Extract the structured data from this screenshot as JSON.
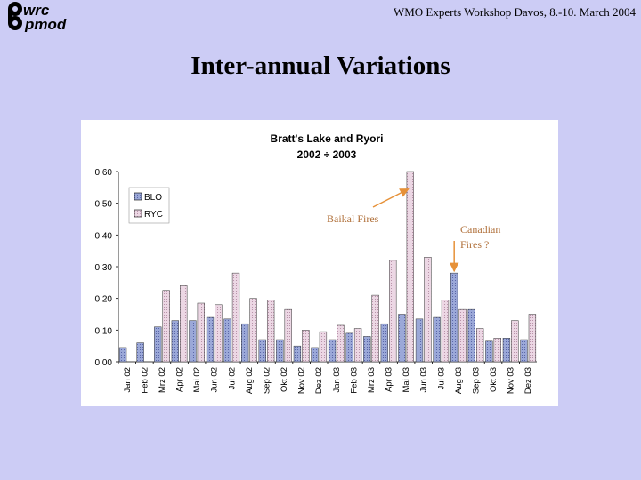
{
  "header": {
    "logo_text_top": "wrc",
    "logo_text_bottom": "pmod",
    "workshop": "WMO Experts Workshop Davos, 8.-10. March 2004"
  },
  "slide": {
    "title": "Inter-annual Variations"
  },
  "chart_data": {
    "type": "bar",
    "title": "Bratt's Lake and Ryori",
    "subtitle": "2002 ÷ 2003",
    "categories": [
      "Jan 02",
      "Feb 02",
      "Mrz 02",
      "Apr 02",
      "Mai 02",
      "Jun 02",
      "Jul 02",
      "Aug 02",
      "Sep 02",
      "Okt 02",
      "Nov 02",
      "Dez 02",
      "Jan 03",
      "Feb 03",
      "Mrz 03",
      "Apr 03",
      "Mai 03",
      "Jun 03",
      "Jul 03",
      "Aug 03",
      "Sep 03",
      "Okt 03",
      "Nov 03",
      "Dez 03"
    ],
    "series": [
      {
        "name": "BLO",
        "values": [
          0.045,
          0.06,
          0.11,
          0.13,
          0.13,
          0.14,
          0.135,
          0.12,
          0.07,
          0.07,
          0.05,
          0.045,
          0.07,
          0.09,
          0.08,
          0.12,
          0.15,
          0.135,
          0.14,
          0.28,
          0.165,
          0.065,
          0.075,
          0.07
        ]
      },
      {
        "name": "RYC",
        "values": [
          null,
          null,
          0.225,
          0.24,
          0.185,
          0.18,
          0.28,
          0.2,
          0.195,
          0.165,
          0.1,
          0.095,
          0.115,
          0.105,
          0.21,
          0.32,
          0.6,
          0.33,
          0.195,
          0.165,
          0.105,
          0.075,
          0.13,
          0.15
        ]
      }
    ],
    "ylim": [
      0,
      0.6
    ],
    "yticks": [
      "0.00",
      "0.10",
      "0.20",
      "0.30",
      "0.40",
      "0.50",
      "0.60"
    ],
    "legend_position": "top-left",
    "grid": false,
    "colors": {
      "BLO": "#9ba8d8",
      "RYC": "#e6d0de",
      "arrow": "#e69138"
    },
    "annotations": [
      {
        "text": "Baikal Fires",
        "target_category": "Mai 03"
      },
      {
        "text": "Canadian",
        "text2": "Fires ?",
        "target_category": "Aug 03"
      }
    ]
  }
}
